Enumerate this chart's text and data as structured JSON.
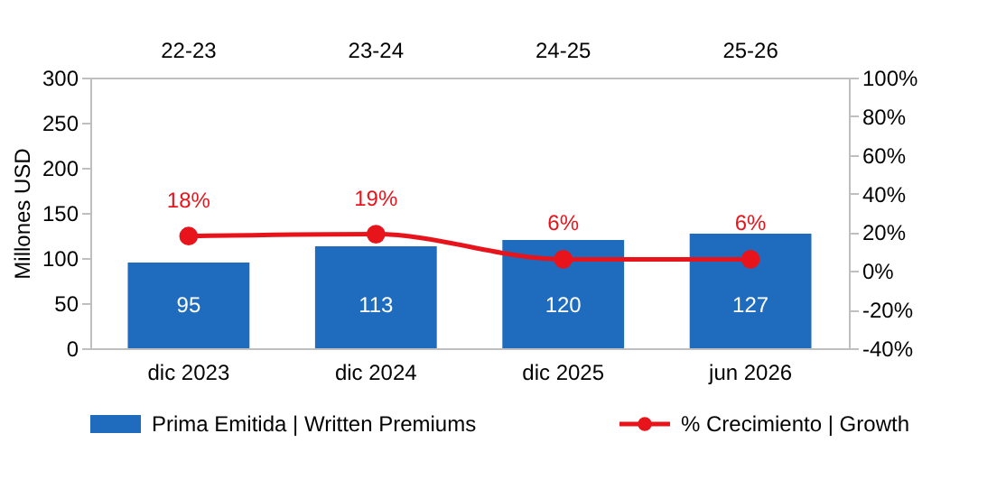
{
  "chart_data": {
    "type": "bar",
    "categories": [
      "dic 2023",
      "dic 2024",
      "dic 2025",
      "jun 2026"
    ],
    "ylabel": "Millones USD",
    "ylim": [
      0,
      300
    ],
    "yticks": [
      0,
      50,
      100,
      150,
      200,
      250,
      300
    ],
    "y2lim": [
      -40,
      100
    ],
    "y2ticks": [
      {
        "value": -40,
        "label": "-40%"
      },
      {
        "value": -20,
        "label": "-20%"
      },
      {
        "value": 0,
        "label": "0%"
      },
      {
        "value": 20,
        "label": "20%"
      },
      {
        "value": 40,
        "label": "40%"
      },
      {
        "value": 60,
        "label": "60%"
      },
      {
        "value": 80,
        "label": "80%"
      },
      {
        "value": 100,
        "label": "100%"
      }
    ],
    "series": [
      {
        "name": "Prima Emitida | Written Premiums",
        "color": "#1f6cbf",
        "values": [
          95,
          113,
          120,
          127
        ],
        "value_labels": [
          "95",
          "113",
          "120",
          "127"
        ]
      },
      {
        "name": "% Crecimiento | Growth",
        "type": "line",
        "axis": "y2",
        "color": "#e8141c",
        "values": [
          18,
          19,
          6,
          6
        ],
        "value_labels": [
          "18%",
          "19%",
          "6%",
          "6%"
        ],
        "marker": "circle",
        "line_style": "solid"
      }
    ],
    "annotations": [
      "22-23",
      "23-24",
      "24-25",
      "25-26"
    ],
    "grid": false,
    "legend": "bottom"
  }
}
